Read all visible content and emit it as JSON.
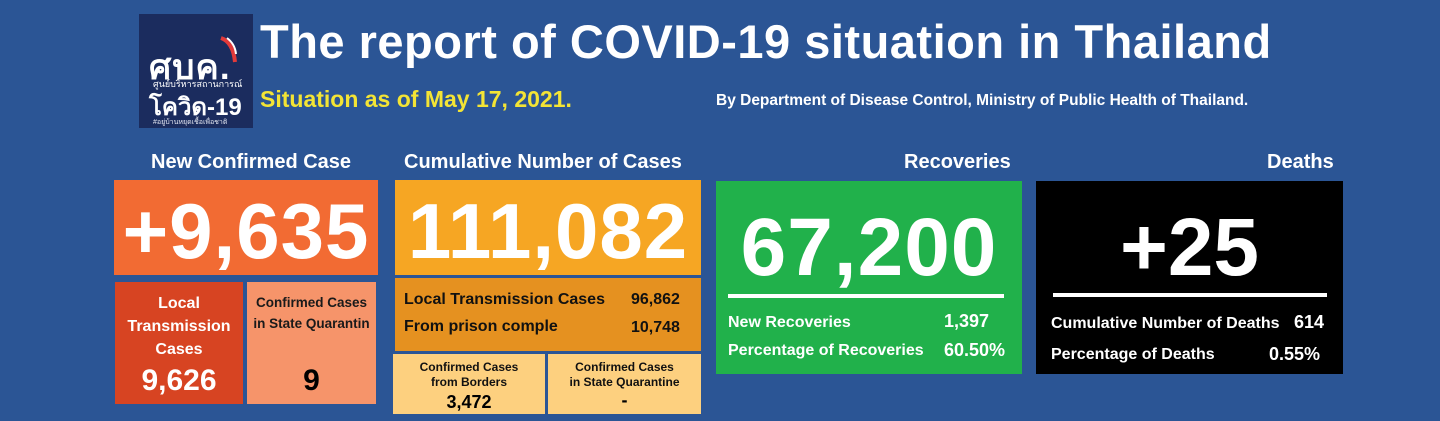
{
  "logo": {
    "main_text": "ศบค.",
    "small_text": "ศูนย์บริหารสถานการณ์",
    "sub_text": "โควิด-19",
    "tagline": "#อยู่บ้านหยุดเชื้อเพื่อชาติ"
  },
  "header": {
    "title": "The report of COVID-19 situation in Thailand",
    "situation_date": "Situation as of May 17, 2021.",
    "byline": "By Department of Disease Control, Ministry of Public Health of Thailand."
  },
  "new_confirmed": {
    "heading": "New Confirmed Case",
    "value": "+9,635",
    "local": {
      "label_line1": "Local",
      "label_line2": "Transmission",
      "label_line3": "Cases",
      "value": "9,626"
    },
    "quarantine": {
      "label_line1": "Confirmed Cases",
      "label_line2": "in State Quarantin",
      "value": "9"
    }
  },
  "cumulative": {
    "heading": "Cumulative Number of Cases",
    "value": "111,082",
    "local_label": "Local Transmission Cases",
    "local_value": "96,862",
    "prison_label": "From prison comple",
    "prison_value": "10,748",
    "borders": {
      "label_line1": "Confirmed Cases",
      "label_line2": "from Borders",
      "value": "3,472"
    },
    "quarantine": {
      "label_line1": "Confirmed Cases",
      "label_line2": "in State Quarantine",
      "value": "-"
    }
  },
  "recoveries": {
    "heading": "Recoveries",
    "value": "67,200",
    "new_label": "New Recoveries",
    "new_value": "1,397",
    "pct_label": "Percentage of Recoveries",
    "pct_value": "60.50%"
  },
  "deaths": {
    "heading": "Deaths",
    "value": "+25",
    "cum_label": "Cumulative Number of Deaths",
    "cum_value": "614",
    "pct_label": "Percentage of Deaths",
    "pct_value": "0.55%"
  },
  "colors": {
    "background": "#2b5595",
    "orange_main": "#f26b33",
    "orange_dark": "#d74422",
    "orange_light": "#f6946a",
    "amber_main": "#f6a623",
    "amber_mid": "#e59120",
    "amber_light": "#fdd07f",
    "green": "#21b14b",
    "black": "#000000",
    "yellow_text": "#f3e435"
  }
}
